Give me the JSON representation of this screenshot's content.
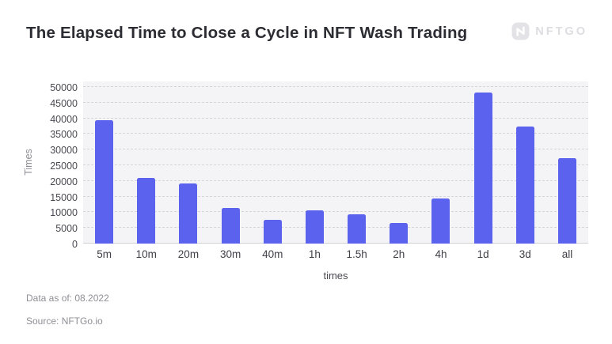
{
  "header": {
    "title": "The Elapsed Time to Close a Cycle in NFT Wash Trading",
    "logo_text": "NFTGO"
  },
  "chart_data": {
    "type": "bar",
    "title": "The Elapsed Time to Close a Cycle in NFT Wash Trading",
    "categories": [
      "5m",
      "10m",
      "20m",
      "30m",
      "40m",
      "1h",
      "1.5h",
      "2h",
      "4h",
      "1d",
      "3d",
      "all"
    ],
    "values": [
      39500,
      21000,
      19300,
      11300,
      7500,
      10700,
      9400,
      6600,
      14400,
      48200,
      37500,
      27300
    ],
    "xlabel": "times",
    "ylabel": "Times",
    "ylim": [
      0,
      50000
    ],
    "ytick_step": 5000,
    "grid": "horizontal-dashed",
    "legend": "none",
    "bar_color": "#5b62ee",
    "plot_background": "#f4f4f7",
    "gridline_color": "#d5d5db"
  },
  "footer": {
    "as_of": "Data as of: 08.2022",
    "source": "Source: NFTGo.io"
  },
  "colors": {
    "accent": "#5b62ee",
    "title_text": "#2c2c33",
    "muted_text": "#8e8e95",
    "logo_gray": "#e3e3e7"
  },
  "icons": {
    "logo_mark": "nftgo-n-mark"
  }
}
